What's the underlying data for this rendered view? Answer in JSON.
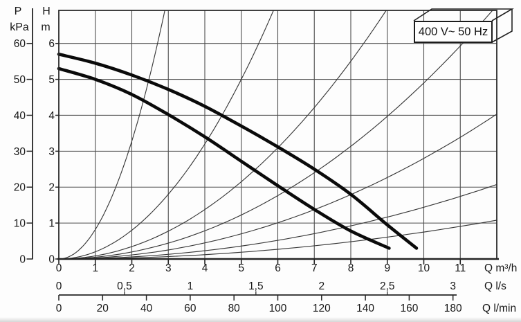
{
  "annotation_box": {
    "label": "400 V~ 50 Hz"
  },
  "left_axis_pressure": {
    "symbol": "P",
    "unit": "kPa",
    "tick_labels": [
      "0",
      "10",
      "20",
      "30",
      "40",
      "50",
      "60"
    ],
    "tick_values": [
      0,
      10,
      20,
      30,
      40,
      50,
      60
    ]
  },
  "left_axis_head": {
    "symbol": "H",
    "unit": "m",
    "tick_labels": [
      "0",
      "1",
      "2",
      "3",
      "4",
      "5",
      "6"
    ],
    "tick_values": [
      0,
      1,
      2,
      3,
      4,
      5,
      6
    ]
  },
  "bottom_axis_m3h": {
    "unit_label": "Q m³/h",
    "tick_labels": [
      "0",
      "1",
      "2",
      "3",
      "4",
      "5",
      "6",
      "7",
      "8",
      "9",
      "10",
      "11"
    ],
    "tick_values": [
      0,
      1,
      2,
      3,
      4,
      5,
      6,
      7,
      8,
      9,
      10,
      11
    ]
  },
  "bottom_axis_ls": {
    "unit_label": "Q l/s",
    "tick_labels": [
      "0",
      "0,5",
      "1",
      "1,5",
      "2",
      "2,5",
      "3"
    ],
    "tick_values": [
      0,
      0.5,
      1,
      1.5,
      2,
      2.5,
      3
    ]
  },
  "bottom_axis_lmin": {
    "unit_label": "Q l/min",
    "tick_labels": [
      "0",
      "20",
      "40",
      "60",
      "80",
      "100",
      "120",
      "140",
      "160",
      "180"
    ],
    "tick_values": [
      0,
      20,
      40,
      60,
      80,
      100,
      120,
      140,
      160,
      180
    ]
  },
  "chart_data": {
    "type": "line",
    "title": "",
    "xlabel": "Q m³/h",
    "ylabel": "H m (left, inner) / P kPa (left, outer)",
    "xlim": [
      0,
      12
    ],
    "ylim": [
      0,
      6.92
    ],
    "grid": true,
    "legend": null,
    "annotation": "400 V~ 50 Hz",
    "series": [
      {
        "name": "pump-curve-upper",
        "kind": "pump_curve",
        "stroke": "thick",
        "points": [
          [
            0,
            5.7
          ],
          [
            1,
            5.45
          ],
          [
            2,
            5.12
          ],
          [
            3,
            4.72
          ],
          [
            4,
            4.25
          ],
          [
            5,
            3.7
          ],
          [
            6,
            3.12
          ],
          [
            7,
            2.5
          ],
          [
            8,
            1.8
          ],
          [
            9,
            0.95
          ],
          [
            9.8,
            0.3
          ]
        ]
      },
      {
        "name": "pump-curve-lower",
        "kind": "pump_curve",
        "stroke": "thick",
        "points": [
          [
            0,
            5.3
          ],
          [
            1,
            5.0
          ],
          [
            2,
            4.58
          ],
          [
            3,
            4.02
          ],
          [
            4,
            3.4
          ],
          [
            5,
            2.72
          ],
          [
            6,
            2.04
          ],
          [
            7,
            1.38
          ],
          [
            8,
            0.78
          ],
          [
            9.05,
            0.3
          ]
        ]
      },
      {
        "name": "system-curve-family",
        "kind": "quadratic_through_origin",
        "stroke": "thin",
        "formula": "H = k*Q^2",
        "k_values": [
          0.82,
          0.2,
          0.086,
          0.049,
          0.028,
          0.0144,
          0.0075
        ]
      }
    ]
  }
}
